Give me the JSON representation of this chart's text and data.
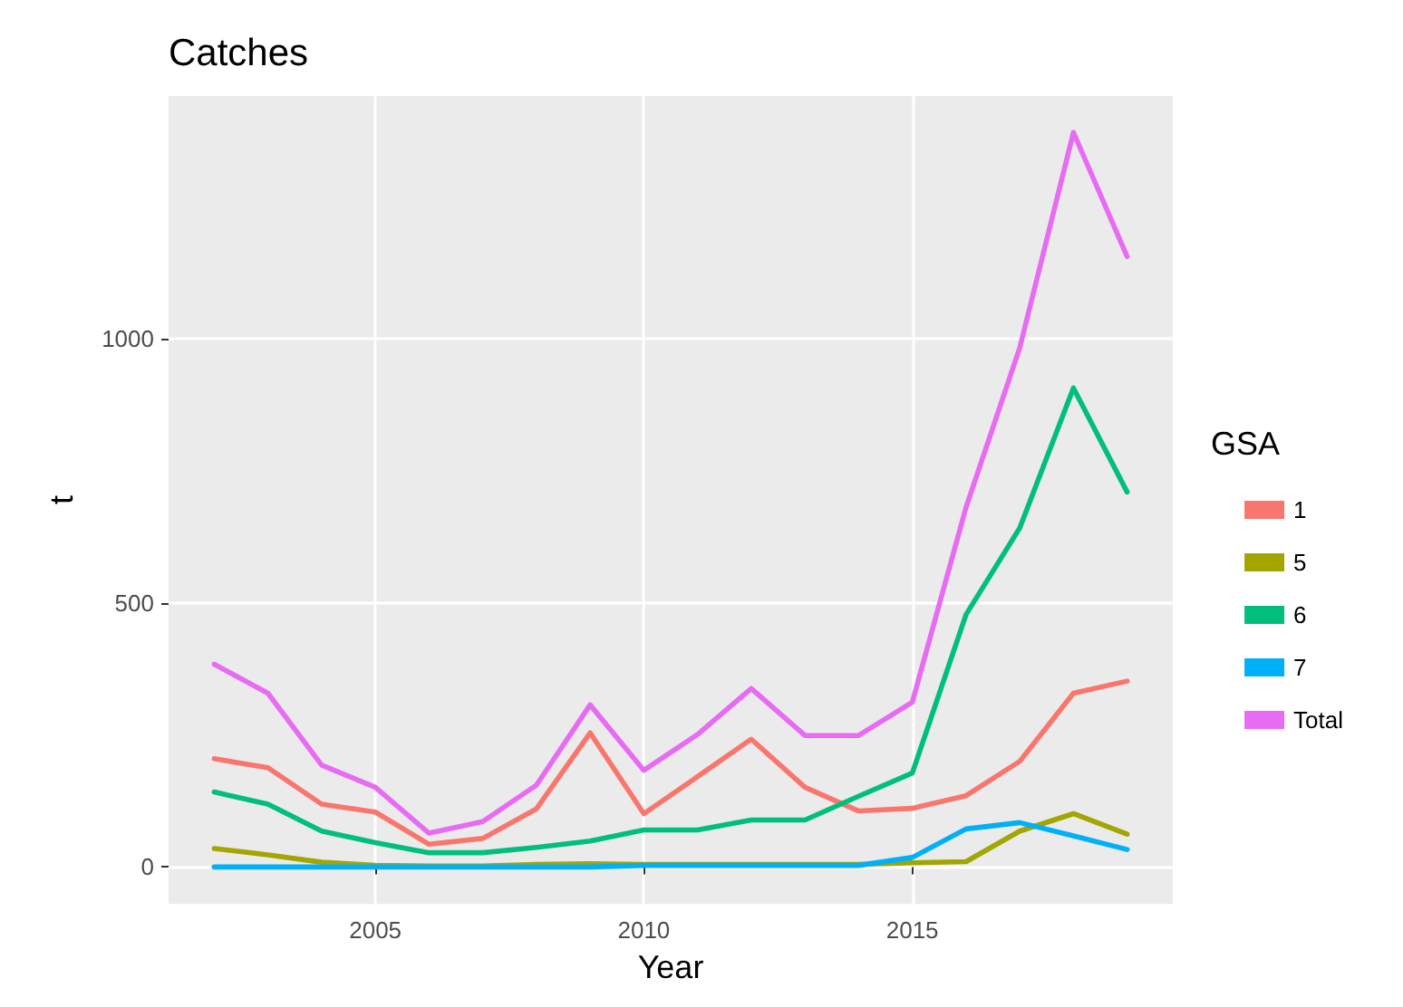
{
  "chart_data": {
    "type": "line",
    "title": "Catches",
    "xlabel": "Year",
    "ylabel": "t",
    "legend_title": "GSA",
    "x": [
      2002,
      2003,
      2004,
      2005,
      2006,
      2007,
      2008,
      2009,
      2010,
      2011,
      2012,
      2013,
      2014,
      2015,
      2016,
      2017,
      2018,
      2019
    ],
    "series": [
      {
        "name": "1",
        "color": "#f8766d",
        "values": [
          205,
          188,
          119,
          104,
          43,
          54,
          110,
          254,
          101,
          171,
          242,
          151,
          106,
          111,
          135,
          200,
          329,
          352
        ]
      },
      {
        "name": "5",
        "color": "#a3a500",
        "values": [
          35,
          23,
          9,
          3,
          2,
          2,
          5,
          6,
          5,
          5,
          5,
          5,
          5,
          8,
          10,
          68,
          101,
          62
        ]
      },
      {
        "name": "6",
        "color": "#00bf7d",
        "values": [
          142,
          119,
          68,
          46,
          27,
          27,
          37,
          49,
          70,
          70,
          89,
          89,
          134,
          178,
          478,
          642,
          907,
          710
        ]
      },
      {
        "name": "7",
        "color": "#00b0f6",
        "values": [
          0,
          0,
          0,
          0,
          0,
          0,
          0,
          0,
          3,
          3,
          3,
          3,
          3,
          18,
          72,
          84,
          59,
          33
        ]
      },
      {
        "name": "Total",
        "color": "#e76bf3",
        "values": [
          384,
          329,
          193,
          151,
          64,
          86,
          155,
          307,
          183,
          251,
          338,
          249,
          249,
          312,
          681,
          983,
          1391,
          1156
        ]
      }
    ],
    "xlim": [
      2001.15,
      2019.85
    ],
    "xticks": [
      2005,
      2010,
      2015
    ],
    "ylim": [
      -70,
      1460
    ],
    "yticks": [
      0,
      500,
      1000
    ],
    "grid": true,
    "legend": "right",
    "marker": "none",
    "line_style": "solid"
  }
}
